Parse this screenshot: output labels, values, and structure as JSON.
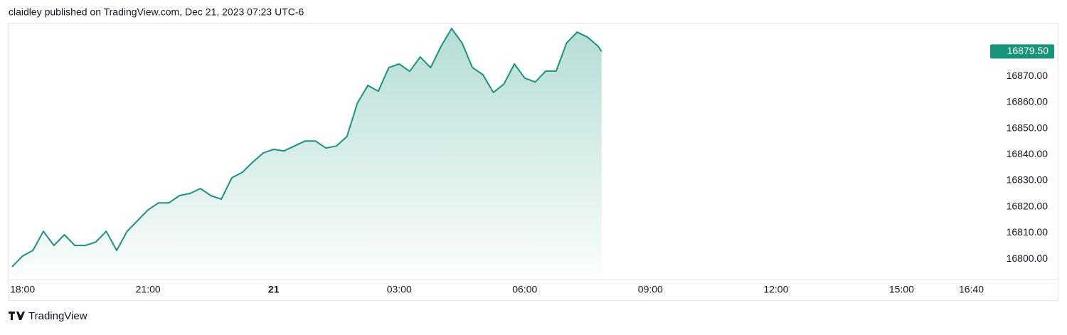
{
  "header": "claidley published on TradingView.com, Dec 21, 2023 07:23 UTC-6",
  "footer": "TradingView",
  "chart_data": {
    "type": "area",
    "color": "#16957b",
    "x": [
      "17:45",
      "18:00",
      "18:15",
      "18:30",
      "18:45",
      "19:00",
      "19:15",
      "19:30",
      "19:45",
      "20:00",
      "20:15",
      "20:30",
      "20:45",
      "21:00",
      "21:15",
      "21:30",
      "21:45",
      "22:00",
      "22:15",
      "22:30",
      "22:45",
      "23:00",
      "23:15",
      "23:30",
      "23:45",
      "00:00",
      "00:15",
      "00:30",
      "00:45",
      "01:00",
      "01:15",
      "01:30",
      "01:45",
      "02:00",
      "02:15",
      "02:30",
      "02:45",
      "03:00",
      "03:15",
      "03:30",
      "03:45",
      "04:00",
      "04:15",
      "04:30",
      "04:45",
      "05:00",
      "05:15",
      "05:30",
      "05:45",
      "06:00",
      "06:15",
      "06:30",
      "06:45",
      "07:00",
      "07:15",
      "07:30",
      "07:45",
      "07:50"
    ],
    "values": [
      16797.0,
      16801.1,
      16803.3,
      16810.6,
      16805.2,
      16809.3,
      16805.2,
      16805.2,
      16806.5,
      16810.6,
      16803.3,
      16810.6,
      16814.7,
      16818.8,
      16821.5,
      16821.5,
      16824.3,
      16825.1,
      16827.0,
      16824.3,
      16822.9,
      16831.1,
      16833.2,
      16837.1,
      16840.6,
      16842.0,
      16841.4,
      16843.3,
      16845.2,
      16845.2,
      16842.5,
      16843.3,
      16846.9,
      16859.7,
      16866.5,
      16864.3,
      16873.3,
      16874.7,
      16871.9,
      16877.4,
      16873.3,
      16881.5,
      16888.3,
      16882.8,
      16873.3,
      16870.6,
      16863.8,
      16867.0,
      16874.7,
      16869.3,
      16867.8,
      16872.0,
      16872.0,
      16882.8,
      16886.9,
      16885.0,
      16881.5,
      16879.5
    ],
    "last_price": {
      "value": 16879.5,
      "label": "16879.50"
    },
    "xlim": [
      "17:40",
      "17:05"
    ],
    "xticks": [
      "18:00",
      "21:00",
      {
        "value": "00:00",
        "label": "21"
      },
      "03:00",
      "06:00",
      "09:00",
      "12:00",
      "15:00",
      "16:40"
    ],
    "ylim": [
      16793.5,
      16890.5
    ],
    "yticks": [
      {
        "value": 16800,
        "label": "16800.00"
      },
      {
        "value": 16810,
        "label": "16810.00"
      },
      {
        "value": 16820,
        "label": "16820.00"
      },
      {
        "value": 16830,
        "label": "16830.00"
      },
      {
        "value": 16840,
        "label": "16840.00"
      },
      {
        "value": 16850,
        "label": "16850.00"
      },
      {
        "value": 16860,
        "label": "16860.00"
      },
      {
        "value": 16870,
        "label": "16870.00"
      }
    ]
  }
}
